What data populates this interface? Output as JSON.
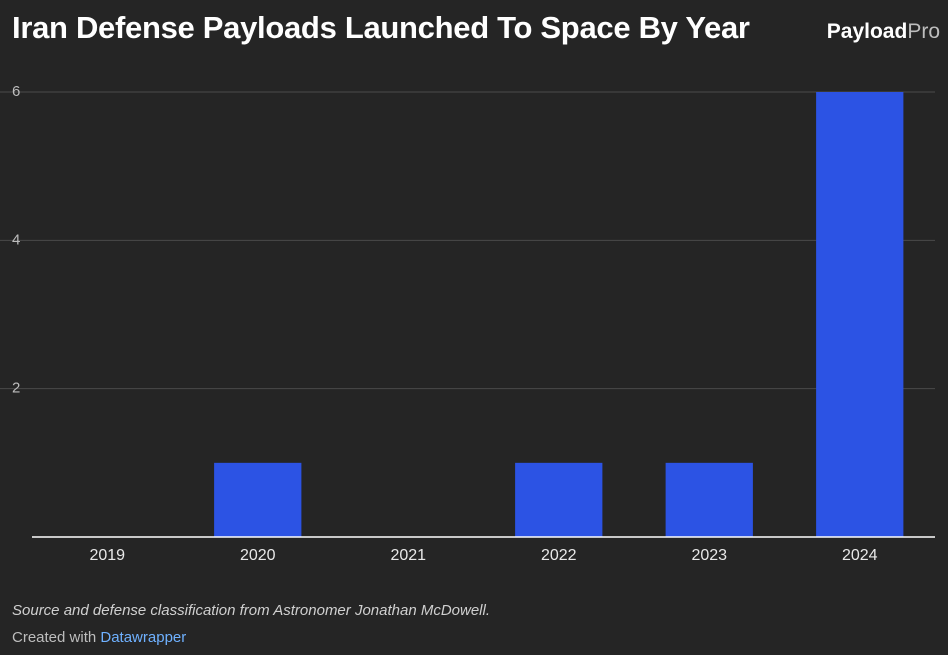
{
  "chart_data": {
    "type": "bar",
    "title": "Iran Defense Payloads Launched To Space By Year",
    "categories": [
      "2019",
      "2020",
      "2021",
      "2022",
      "2023",
      "2024"
    ],
    "values": [
      0,
      1,
      0,
      1,
      1,
      6
    ],
    "ylim": [
      0,
      6
    ],
    "yticks": [
      2,
      4,
      6
    ],
    "xlabel": "",
    "ylabel": "",
    "grid": true,
    "bar_color": "#2c53e4"
  },
  "logo": {
    "bold": "Payload",
    "light": "Pro"
  },
  "footer": {
    "source": "Source and defense classification from Astronomer Jonathan McDowell.",
    "credit_prefix": "Created with ",
    "credit_link": "Datawrapper"
  }
}
